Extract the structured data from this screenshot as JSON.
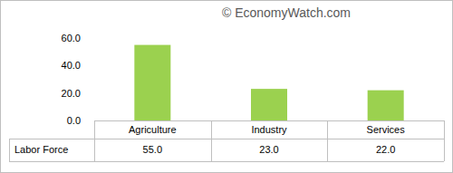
{
  "chart_data": {
    "type": "bar",
    "annotations": [
      "© EconomyWatch.com"
    ],
    "categories": [
      "Agriculture",
      "Industry",
      "Services"
    ],
    "series": [
      {
        "name": "Labor Force",
        "color": "#9bd14f",
        "values": [
          55,
          23,
          22
        ],
        "value_labels": [
          "55.0",
          "23.0",
          "22.0"
        ]
      }
    ],
    "ylim": [
      0,
      60
    ],
    "yticks": [
      {
        "value": 0,
        "label": "0.0"
      },
      {
        "value": 20,
        "label": "20.0"
      },
      {
        "value": 40,
        "label": "40.0"
      },
      {
        "value": 60,
        "label": "60.0"
      }
    ],
    "grid": false,
    "data_labels": true
  }
}
